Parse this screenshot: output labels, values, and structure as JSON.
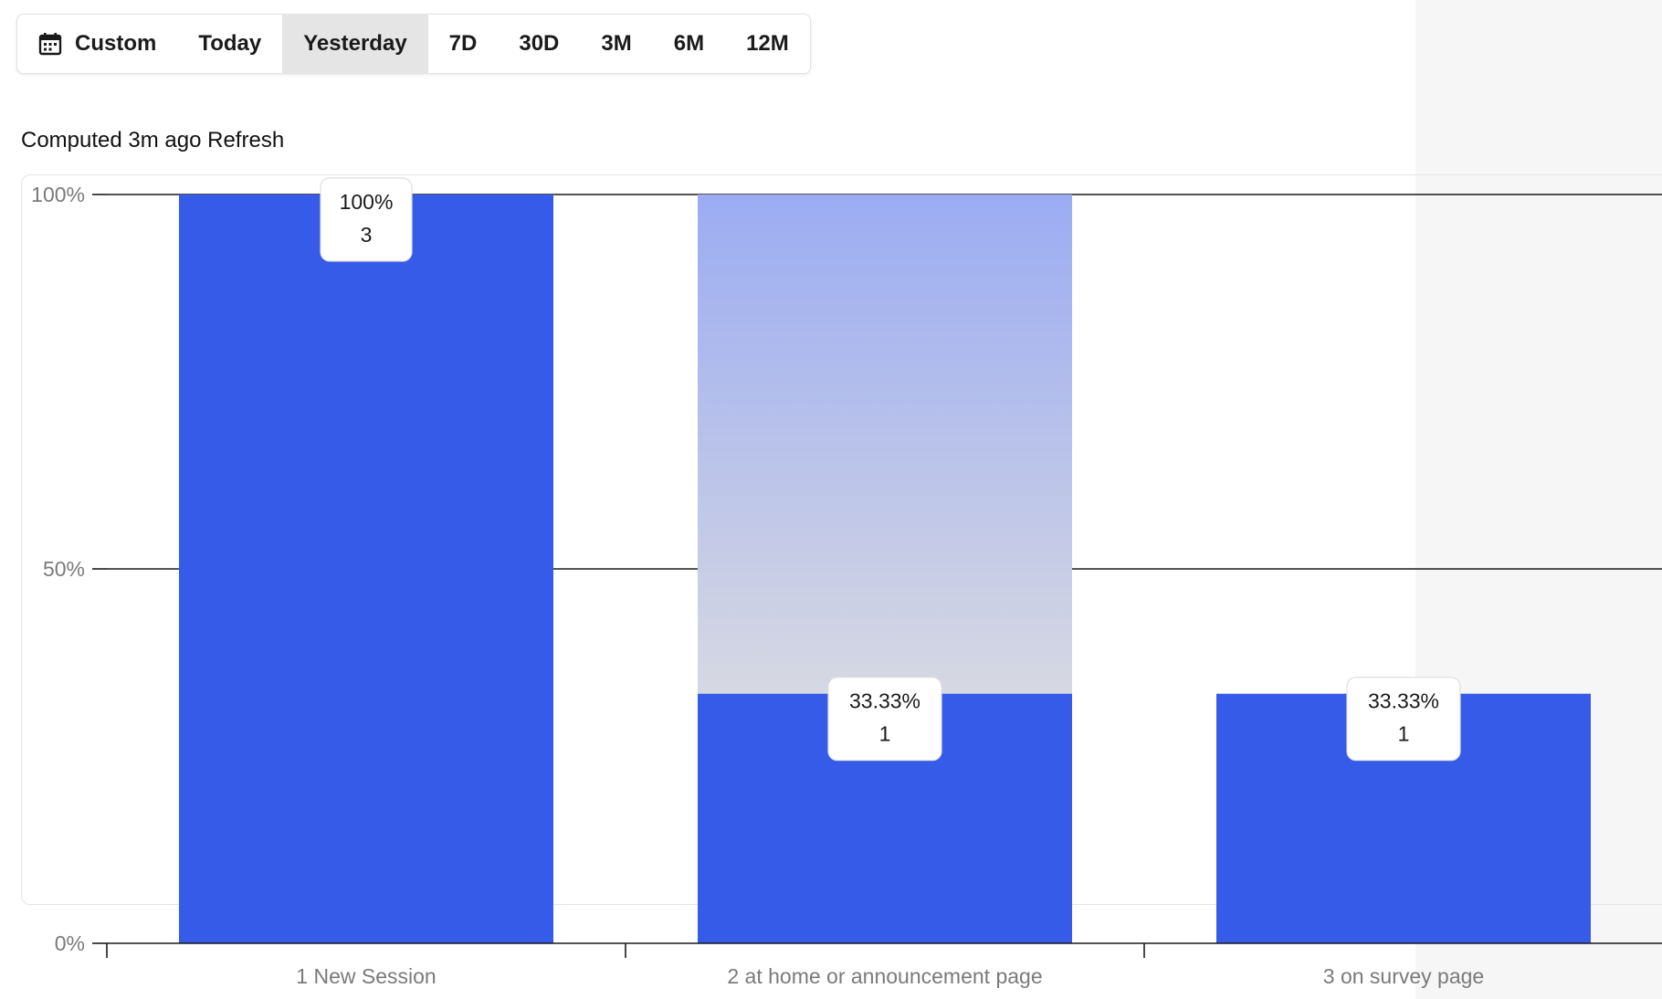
{
  "toolbar": {
    "ranges": [
      {
        "label": "Custom",
        "icon": "calendar-icon",
        "active": false
      },
      {
        "label": "Today",
        "active": false
      },
      {
        "label": "Yesterday",
        "active": true
      },
      {
        "label": "7D",
        "active": false
      },
      {
        "label": "30D",
        "active": false
      },
      {
        "label": "3M",
        "active": false
      },
      {
        "label": "6M",
        "active": false
      },
      {
        "label": "12M",
        "active": false
      }
    ]
  },
  "status": {
    "computed_text": "Computed 3m ago",
    "refresh_label": "Refresh"
  },
  "chart_data": {
    "type": "bar",
    "title": "",
    "xlabel": "",
    "ylabel": "",
    "ylim": [
      0,
      100
    ],
    "y_ticks": [
      "0%",
      "50%",
      "100%"
    ],
    "y_tick_values": [
      0,
      50,
      100
    ],
    "categories": [
      "1 New Session",
      "2 at home or announcement page",
      "3 on survey page"
    ],
    "series": [
      {
        "values": [
          100,
          33.33,
          33.33
        ]
      }
    ],
    "counts": [
      3,
      1,
      1
    ],
    "data_labels": [
      {
        "percent": "100%",
        "count": "3"
      },
      {
        "percent": "33.33%",
        "count": "1"
      },
      {
        "percent": "33.33%",
        "count": "1"
      }
    ],
    "dropoff_shading": [
      false,
      true,
      false
    ],
    "grid": true,
    "colors": {
      "bar": "#365be8",
      "dropoff_top": "#9bacf2",
      "dropoff_bottom": "#d6d8e2",
      "grid": "#1a1a1a"
    }
  }
}
